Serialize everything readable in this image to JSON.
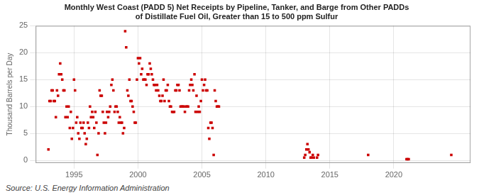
{
  "chart_data": {
    "type": "scatter",
    "title": "Monthly West Coast (PADD 5) Net Receipts by Pipeline, Tanker, and Barge from Other PADDs\nof Distillate Fuel Oil, Greater than 15 to 500 ppm Sulfur",
    "ylabel": "Thousand Barrels per Day",
    "source": "Source: U.S. Energy Information Administration",
    "color": "#cc0000",
    "marker": "square",
    "grid": true,
    "xlim": [
      1992.0,
      2026.0
    ],
    "ylim": [
      -0.5,
      25
    ],
    "xticks": [
      1995,
      2000,
      2005,
      2010,
      2015,
      2020
    ],
    "yticks": [
      0,
      5,
      10,
      15,
      20,
      25
    ],
    "x": [
      1993.0,
      1993.08,
      1993.17,
      1993.25,
      1993.33,
      1993.42,
      1993.5,
      1993.58,
      1993.67,
      1993.75,
      1993.83,
      1993.92,
      1994.0,
      1994.08,
      1994.17,
      1994.25,
      1994.33,
      1994.42,
      1994.5,
      1994.58,
      1994.67,
      1994.75,
      1994.83,
      1994.92,
      1995.0,
      1995.08,
      1995.17,
      1995.25,
      1995.33,
      1995.42,
      1995.5,
      1995.58,
      1995.67,
      1995.75,
      1995.83,
      1995.92,
      1996.0,
      1996.08,
      1996.17,
      1996.25,
      1996.33,
      1996.42,
      1996.5,
      1996.58,
      1996.67,
      1996.75,
      1996.83,
      1996.92,
      1997.0,
      1997.08,
      1997.17,
      1997.25,
      1997.33,
      1997.42,
      1997.5,
      1997.58,
      1997.67,
      1997.75,
      1997.83,
      1997.92,
      1998.0,
      1998.08,
      1998.17,
      1998.25,
      1998.33,
      1998.42,
      1998.5,
      1998.58,
      1998.67,
      1998.75,
      1998.83,
      1998.92,
      1999.0,
      1999.08,
      1999.17,
      1999.25,
      1999.33,
      1999.42,
      1999.5,
      1999.58,
      1999.67,
      1999.75,
      1999.83,
      1999.92,
      2000.0,
      2000.08,
      2000.17,
      2000.25,
      2000.33,
      2000.42,
      2000.5,
      2000.58,
      2000.67,
      2000.75,
      2000.83,
      2000.92,
      2001.0,
      2001.08,
      2001.17,
      2001.25,
      2001.33,
      2001.42,
      2001.5,
      2001.58,
      2001.67,
      2001.75,
      2001.83,
      2001.92,
      2002.0,
      2002.08,
      2002.17,
      2002.25,
      2002.33,
      2002.42,
      2002.5,
      2002.58,
      2002.67,
      2002.75,
      2002.83,
      2002.92,
      2003.0,
      2003.08,
      2003.17,
      2003.25,
      2003.33,
      2003.42,
      2003.5,
      2003.58,
      2003.67,
      2003.75,
      2003.83,
      2003.92,
      2004.0,
      2004.08,
      2004.17,
      2004.25,
      2004.33,
      2004.42,
      2004.5,
      2004.58,
      2004.67,
      2004.75,
      2004.83,
      2004.92,
      2005.0,
      2005.08,
      2005.17,
      2005.25,
      2005.33,
      2005.42,
      2005.5,
      2005.58,
      2005.67,
      2005.75,
      2005.83,
      2005.92,
      2006.0,
      2006.08,
      2006.17,
      2006.25,
      2006.33,
      2013.0,
      2013.08,
      2013.17,
      2013.25,
      2013.33,
      2013.42,
      2013.5,
      2013.58,
      2013.67,
      2013.75,
      2014.0,
      2014.08,
      2018.0,
      2021.0,
      2021.08,
      2021.17,
      2024.5
    ],
    "values": [
      2.0,
      11.0,
      11.0,
      13.0,
      13.0,
      11.0,
      11.0,
      8.0,
      13.0,
      12.0,
      16.0,
      18.0,
      16.0,
      15.0,
      13.0,
      13.0,
      8.0,
      10.0,
      8.0,
      10.0,
      6.0,
      9.0,
      4.0,
      6.0,
      15.0,
      13.0,
      7.0,
      8.0,
      5.0,
      4.0,
      7.0,
      6.0,
      6.0,
      7.0,
      5.0,
      3.0,
      4.0,
      7.0,
      6.0,
      10.0,
      8.0,
      9.0,
      8.0,
      6.0,
      9.0,
      7.0,
      1.0,
      5.0,
      13.0,
      12.0,
      12.0,
      9.0,
      7.0,
      5.0,
      7.0,
      9.0,
      8.0,
      9.0,
      10.0,
      14.0,
      15.0,
      13.0,
      9.0,
      10.0,
      10.0,
      9.0,
      7.0,
      8.0,
      7.0,
      7.0,
      5.0,
      6.0,
      24.0,
      21.0,
      13.0,
      12.0,
      15.0,
      11.0,
      11.0,
      10.0,
      9.0,
      7.0,
      7.0,
      15.0,
      19.0,
      18.0,
      19.0,
      16.0,
      17.0,
      15.0,
      15.0,
      15.0,
      14.0,
      16.0,
      16.0,
      18.0,
      17.0,
      16.0,
      15.0,
      14.0,
      14.0,
      13.0,
      14.0,
      13.0,
      12.0,
      11.0,
      11.0,
      12.0,
      15.0,
      11.0,
      13.0,
      13.0,
      14.0,
      11.0,
      10.0,
      10.0,
      9.0,
      9.0,
      9.0,
      13.0,
      13.0,
      14.0,
      14.0,
      13.0,
      10.0,
      10.0,
      10.0,
      10.0,
      9.0,
      10.0,
      10.0,
      10.0,
      13.0,
      14.0,
      15.0,
      14.0,
      13.0,
      16.0,
      9.0,
      12.0,
      9.0,
      10.0,
      9.0,
      11.0,
      15.0,
      13.0,
      14.0,
      15.0,
      13.0,
      13.0,
      6.0,
      4.0,
      7.0,
      7.0,
      6.0,
      1.0,
      13.0,
      11.0,
      10.0,
      10.0,
      10.0,
      0.5,
      1.0,
      2.0,
      3.0,
      2.0,
      1.5,
      0.5,
      0.5,
      1.0,
      0.5,
      0.5,
      1.0,
      1.0,
      0.2,
      0.2,
      0.2,
      1.0
    ]
  }
}
